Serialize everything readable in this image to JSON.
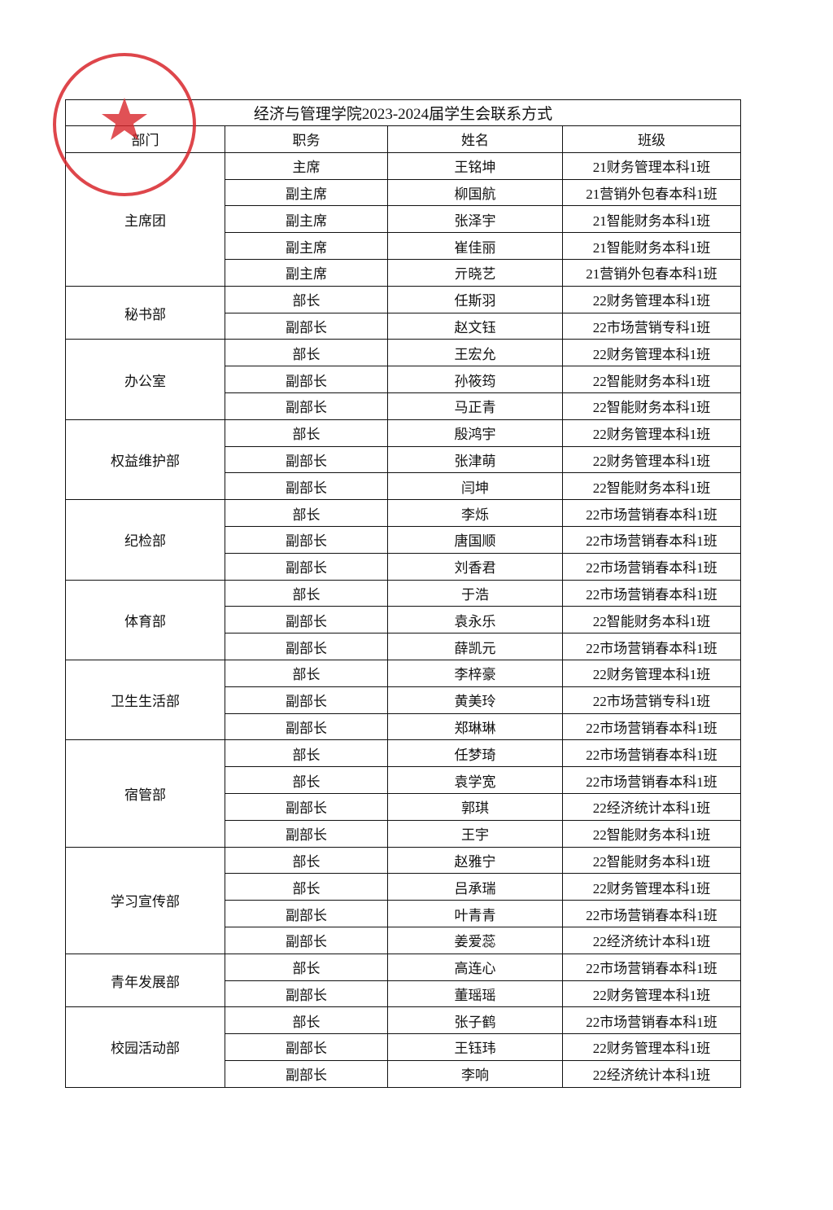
{
  "title": "经济与管理学院2023-2024届学生会联系方式",
  "headers": [
    "部门",
    "职务",
    "姓名",
    "班级"
  ],
  "groups": [
    {
      "department": "主席团",
      "rows": [
        [
          "主席",
          "王铭坤",
          "21财务管理本科1班"
        ],
        [
          "副主席",
          "柳国航",
          "21营销外包春本科1班"
        ],
        [
          "副主席",
          "张泽宇",
          "21智能财务本科1班"
        ],
        [
          "副主席",
          "崔佳丽",
          "21智能财务本科1班"
        ],
        [
          "副主席",
          "亓晓艺",
          "21营销外包春本科1班"
        ]
      ]
    },
    {
      "department": "秘书部",
      "rows": [
        [
          "部长",
          "任斯羽",
          "22财务管理本科1班"
        ],
        [
          "副部长",
          "赵文钰",
          "22市场营销专科1班"
        ]
      ]
    },
    {
      "department": "办公室",
      "rows": [
        [
          "部长",
          "王宏允",
          "22财务管理本科1班"
        ],
        [
          "副部长",
          "孙筱筠",
          "22智能财务本科1班"
        ],
        [
          "副部长",
          "马正青",
          "22智能财务本科1班"
        ]
      ]
    },
    {
      "department": "权益维护部",
      "rows": [
        [
          "部长",
          "殷鸿宇",
          "22财务管理本科1班"
        ],
        [
          "副部长",
          "张津萌",
          "22财务管理本科1班"
        ],
        [
          "副部长",
          "闫坤",
          "22智能财务本科1班"
        ]
      ]
    },
    {
      "department": "纪检部",
      "rows": [
        [
          "部长",
          "李烁",
          "22市场营销春本科1班"
        ],
        [
          "副部长",
          "唐国顺",
          "22市场营销春本科1班"
        ],
        [
          "副部长",
          "刘香君",
          "22市场营销春本科1班"
        ]
      ]
    },
    {
      "department": "体育部",
      "rows": [
        [
          "部长",
          "于浩",
          "22市场营销春本科1班"
        ],
        [
          "副部长",
          "袁永乐",
          "22智能财务本科1班"
        ],
        [
          "副部长",
          "薛凯元",
          "22市场营销春本科1班"
        ]
      ]
    },
    {
      "department": "卫生生活部",
      "rows": [
        [
          "部长",
          "李梓豪",
          "22财务管理本科1班"
        ],
        [
          "副部长",
          "黄美玲",
          "22市场营销专科1班"
        ],
        [
          "副部长",
          "郑琳琳",
          "22市场营销春本科1班"
        ]
      ]
    },
    {
      "department": "宿管部",
      "rows": [
        [
          "部长",
          "任梦琦",
          "22市场营销春本科1班"
        ],
        [
          "部长",
          "袁学宽",
          "22市场营销春本科1班"
        ],
        [
          "副部长",
          "郭琪",
          "22经济统计本科1班"
        ],
        [
          "副部长",
          "王宇",
          "22智能财务本科1班"
        ]
      ]
    },
    {
      "department": "学习宣传部",
      "rows": [
        [
          "部长",
          "赵雅宁",
          "22智能财务本科1班"
        ],
        [
          "部长",
          "吕承瑞",
          "22财务管理本科1班"
        ],
        [
          "副部长",
          "叶青青",
          "22市场营销春本科1班"
        ],
        [
          "副部长",
          "姜爱蕊",
          "22经济统计本科1班"
        ]
      ]
    },
    {
      "department": "青年发展部",
      "rows": [
        [
          "部长",
          "高连心",
          "22市场营销春本科1班"
        ],
        [
          "副部长",
          "董瑶瑶",
          "22财务管理本科1班"
        ]
      ]
    },
    {
      "department": "校园活动部",
      "rows": [
        [
          "部长",
          "张子鹤",
          "22市场营销春本科1班"
        ],
        [
          "副部长",
          "王钰玮",
          "22财务管理本科1班"
        ],
        [
          "副部长",
          "李响",
          "22经济统计本科1班"
        ]
      ]
    }
  ]
}
